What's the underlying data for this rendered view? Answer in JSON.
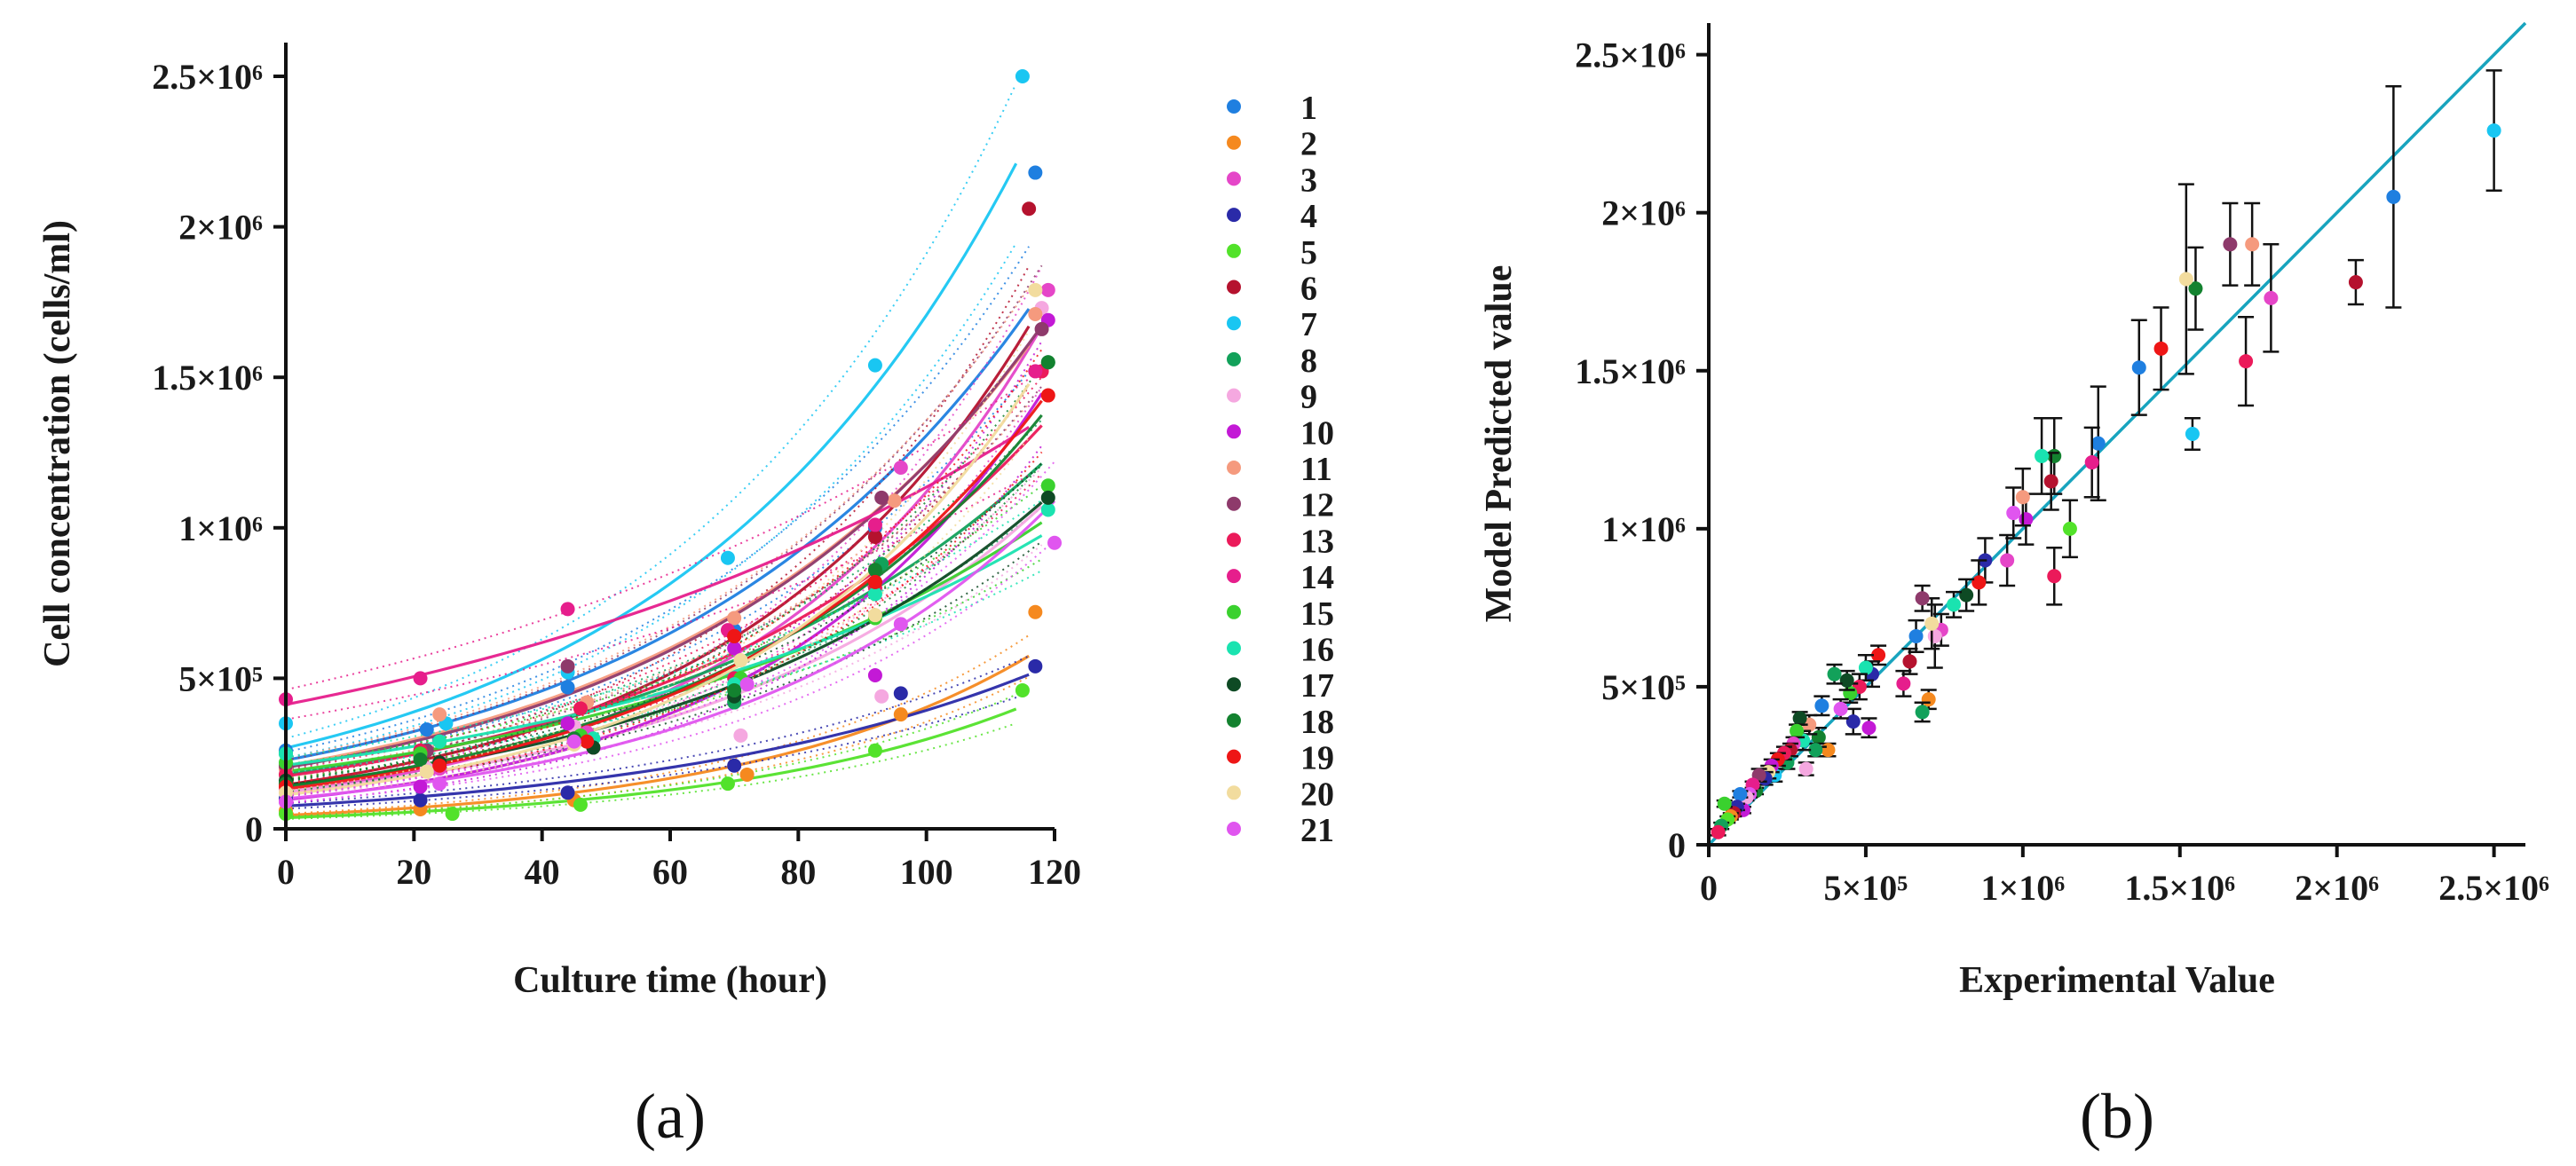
{
  "chart_data": [
    {
      "type": "scatter",
      "panel_label": "(a)",
      "title": "",
      "xlabel": "Culture time (hour)",
      "ylabel": "Cell concentration (cells/ml)",
      "xlim": [
        0,
        120
      ],
      "ylim": [
        0,
        2500000
      ],
      "x_ticks": [
        0,
        20,
        40,
        60,
        80,
        100,
        120
      ],
      "x_tick_labels": [
        "0",
        "20",
        "40",
        "60",
        "80",
        "100",
        "120"
      ],
      "y_ticks": [
        0,
        500000,
        1000000,
        1500000,
        2000000,
        2500000
      ],
      "y_tick_labels": [
        "0",
        "5×10⁵",
        "1×10⁶",
        "1.5×10⁶",
        "2×10⁶",
        "2.5×10⁶"
      ],
      "fit": "exponential growth curve per series with dotted confidence band",
      "legend_position": "right",
      "series": [
        {
          "name": "1",
          "color": "#1f7fe0",
          "x": [
            0,
            22,
            44,
            70,
            92,
            117
          ],
          "values": [
            260000,
            330000,
            470000,
            660000,
            1000000,
            2180000
          ]
        },
        {
          "name": "2",
          "color": "#f5891f",
          "x": [
            0,
            21,
            45,
            72,
            96,
            117
          ],
          "values": [
            60000,
            65000,
            95000,
            180000,
            380000,
            720000
          ]
        },
        {
          "name": "3",
          "color": "#e546c8",
          "x": [
            0,
            24,
            47,
            72,
            96,
            119
          ],
          "values": [
            140000,
            200000,
            320000,
            480000,
            1200000,
            1790000
          ]
        },
        {
          "name": "4",
          "color": "#2a2aa8",
          "x": [
            0,
            21,
            44,
            70,
            96,
            117
          ],
          "values": [
            100000,
            95000,
            120000,
            210000,
            450000,
            540000
          ]
        },
        {
          "name": "5",
          "color": "#52e22a",
          "x": [
            0,
            26,
            46,
            69,
            92,
            115
          ],
          "values": [
            50000,
            50000,
            80000,
            150000,
            260000,
            460000
          ]
        },
        {
          "name": "6",
          "color": "#b5122e",
          "x": [
            0,
            24,
            48,
            70,
            92,
            116
          ],
          "values": [
            200000,
            220000,
            270000,
            640000,
            970000,
            2060000
          ]
        },
        {
          "name": "7",
          "color": "#19c6f2",
          "x": [
            0,
            25,
            44,
            69,
            92,
            115
          ],
          "values": [
            350000,
            350000,
            520000,
            900000,
            1540000,
            2500000
          ]
        },
        {
          "name": "8",
          "color": "#12a15a",
          "x": [
            0,
            21,
            47,
            70,
            93,
            119
          ],
          "values": [
            250000,
            240000,
            290000,
            420000,
            880000,
            1550000
          ]
        },
        {
          "name": "9",
          "color": "#f5a8e0",
          "x": [
            0,
            22,
            45,
            71,
            93,
            118
          ],
          "values": [
            130000,
            200000,
            340000,
            310000,
            440000,
            1730000
          ]
        },
        {
          "name": "10",
          "color": "#c319d6",
          "x": [
            0,
            21,
            44,
            70,
            92,
            119
          ],
          "values": [
            90000,
            140000,
            350000,
            600000,
            510000,
            1690000
          ]
        },
        {
          "name": "11",
          "color": "#f59a7e",
          "x": [
            0,
            24,
            47,
            70,
            95,
            117
          ],
          "values": [
            200000,
            380000,
            420000,
            700000,
            1090000,
            1710000
          ]
        },
        {
          "name": "12",
          "color": "#8e3a6b",
          "x": [
            0,
            22,
            44,
            70,
            93,
            118
          ],
          "values": [
            210000,
            260000,
            540000,
            640000,
            1100000,
            1660000
          ]
        },
        {
          "name": "13",
          "color": "#eb1a5a",
          "x": [
            0,
            21,
            46,
            70,
            92,
            118
          ],
          "values": [
            180000,
            260000,
            400000,
            500000,
            800000,
            1520000
          ]
        },
        {
          "name": "14",
          "color": "#e61e8c",
          "x": [
            0,
            21,
            44,
            69,
            92,
            117
          ],
          "values": [
            430000,
            500000,
            730000,
            660000,
            1010000,
            1520000
          ]
        },
        {
          "name": "15",
          "color": "#3ad12e",
          "x": [
            0,
            21,
            46,
            71,
            92,
            119
          ],
          "values": [
            220000,
            250000,
            310000,
            500000,
            700000,
            1140000
          ]
        },
        {
          "name": "16",
          "color": "#1ae3b0",
          "x": [
            0,
            24,
            48,
            70,
            92,
            119
          ],
          "values": [
            250000,
            290000,
            300000,
            480000,
            780000,
            1060000
          ]
        },
        {
          "name": "17",
          "color": "#0e4a24",
          "x": [
            0,
            24,
            48,
            70,
            92,
            119
          ],
          "values": [
            160000,
            220000,
            270000,
            440000,
            820000,
            1100000
          ]
        },
        {
          "name": "18",
          "color": "#13822f",
          "x": [
            0,
            21,
            45,
            70,
            92,
            119
          ],
          "values": [
            150000,
            230000,
            300000,
            460000,
            860000,
            1550000
          ]
        },
        {
          "name": "19",
          "color": "#ee1616",
          "x": [
            0,
            24,
            47,
            70,
            92,
            119
          ],
          "values": [
            140000,
            210000,
            290000,
            640000,
            820000,
            1440000
          ]
        },
        {
          "name": "20",
          "color": "#f2dc9e",
          "x": [
            0,
            22,
            45,
            71,
            92,
            117
          ],
          "values": [
            120000,
            190000,
            280000,
            560000,
            710000,
            1790000
          ]
        },
        {
          "name": "21",
          "color": "#e055ef",
          "x": [
            0,
            24,
            45,
            72,
            96,
            120
          ],
          "values": [
            90000,
            150000,
            290000,
            480000,
            680000,
            950000
          ]
        }
      ]
    },
    {
      "type": "scatter",
      "panel_label": "(b)",
      "title": "",
      "xlabel": "Experimental Value",
      "ylabel": "Model Predicted value",
      "xlim": [
        0,
        2600000
      ],
      "ylim": [
        0,
        2600000
      ],
      "x_ticks": [
        0,
        500000,
        1000000,
        1500000,
        2000000,
        2500000
      ],
      "x_tick_labels": [
        "0",
        "5×10⁵",
        "1×10⁶",
        "1.5×10⁶",
        "2×10⁶",
        "2.5×10⁶"
      ],
      "y_ticks": [
        0,
        500000,
        1000000,
        1500000,
        2000000,
        2500000
      ],
      "y_tick_labels": [
        "0",
        "5×10⁵",
        "1×10⁶",
        "1.5×10⁶",
        "2×10⁶",
        "2.5×10⁶"
      ],
      "reference_line": {
        "label": "y = x",
        "from": [
          0,
          0
        ],
        "to": [
          2600000,
          2600000
        ],
        "color": "#18a4be"
      },
      "points": [
        {
          "x": 2500000,
          "y": 2260000,
          "err": 190000,
          "color": "#19c6f2"
        },
        {
          "x": 2180000,
          "y": 2050000,
          "err": 350000,
          "color": "#1f7fe0"
        },
        {
          "x": 2060000,
          "y": 1780000,
          "err": 70000,
          "color": "#b5122e"
        },
        {
          "x": 1790000,
          "y": 1730000,
          "err": 170000,
          "color": "#e546c8"
        },
        {
          "x": 1730000,
          "y": 1900000,
          "err": 130000,
          "color": "#f59a7e"
        },
        {
          "x": 1710000,
          "y": 1530000,
          "err": 140000,
          "color": "#eb1a5a"
        },
        {
          "x": 1660000,
          "y": 1900000,
          "err": 130000,
          "color": "#8e3a6b"
        },
        {
          "x": 1550000,
          "y": 1760000,
          "err": 130000,
          "color": "#13822f"
        },
        {
          "x": 1540000,
          "y": 1300000,
          "err": 50000,
          "color": "#19c6f2"
        },
        {
          "x": 1520000,
          "y": 1790000,
          "err": 300000,
          "color": "#f2dc9e"
        },
        {
          "x": 1440000,
          "y": 1570000,
          "err": 130000,
          "color": "#ee1616"
        },
        {
          "x": 1370000,
          "y": 1510000,
          "err": 150000,
          "color": "#1f7fe0"
        },
        {
          "x": 1240000,
          "y": 1270000,
          "err": 180000,
          "color": "#1f7fe0"
        },
        {
          "x": 1220000,
          "y": 1210000,
          "err": 110000,
          "color": "#e61e8c"
        },
        {
          "x": 1150000,
          "y": 1000000,
          "err": 90000,
          "color": "#52e22a"
        },
        {
          "x": 1100000,
          "y": 1230000,
          "err": 120000,
          "color": "#13822f"
        },
        {
          "x": 1100000,
          "y": 850000,
          "err": 90000,
          "color": "#eb1a5a"
        },
        {
          "x": 1090000,
          "y": 1150000,
          "err": 90000,
          "color": "#b5122e"
        },
        {
          "x": 1060000,
          "y": 1230000,
          "err": 120000,
          "color": "#1ae3b0"
        },
        {
          "x": 1010000,
          "y": 1030000,
          "err": 80000,
          "color": "#c319d6"
        },
        {
          "x": 1000000,
          "y": 1100000,
          "err": 90000,
          "color": "#f59a7e"
        },
        {
          "x": 970000,
          "y": 1050000,
          "err": 80000,
          "color": "#e055ef"
        },
        {
          "x": 950000,
          "y": 900000,
          "err": 80000,
          "color": "#e546c8"
        },
        {
          "x": 880000,
          "y": 900000,
          "err": 70000,
          "color": "#2a2aa8"
        },
        {
          "x": 860000,
          "y": 830000,
          "err": 70000,
          "color": "#ee1616"
        },
        {
          "x": 820000,
          "y": 790000,
          "err": 50000,
          "color": "#0e4a24"
        },
        {
          "x": 780000,
          "y": 760000,
          "err": 40000,
          "color": "#1ae3b0"
        },
        {
          "x": 740000,
          "y": 680000,
          "err": 50000,
          "color": "#e546c8"
        },
        {
          "x": 720000,
          "y": 660000,
          "err": 100000,
          "color": "#f5a8e0"
        },
        {
          "x": 710000,
          "y": 700000,
          "err": 80000,
          "color": "#f2dc9e"
        },
        {
          "x": 700000,
          "y": 460000,
          "err": 30000,
          "color": "#f5891f"
        },
        {
          "x": 680000,
          "y": 780000,
          "err": 40000,
          "color": "#8e3a6b"
        },
        {
          "x": 680000,
          "y": 420000,
          "err": 30000,
          "color": "#12a15a"
        },
        {
          "x": 660000,
          "y": 660000,
          "err": 50000,
          "color": "#1f7fe0"
        },
        {
          "x": 640000,
          "y": 580000,
          "err": 40000,
          "color": "#b5122e"
        },
        {
          "x": 620000,
          "y": 510000,
          "err": 40000,
          "color": "#e61e8c"
        },
        {
          "x": 540000,
          "y": 600000,
          "err": 30000,
          "color": "#ee1616"
        },
        {
          "x": 520000,
          "y": 540000,
          "err": 40000,
          "color": "#2a2aa8"
        },
        {
          "x": 510000,
          "y": 370000,
          "err": 30000,
          "color": "#c319d6"
        },
        {
          "x": 500000,
          "y": 560000,
          "err": 40000,
          "color": "#1ae3b0"
        },
        {
          "x": 480000,
          "y": 500000,
          "err": 40000,
          "color": "#eb1a5a"
        },
        {
          "x": 460000,
          "y": 390000,
          "err": 40000,
          "color": "#2a2aa8"
        },
        {
          "x": 450000,
          "y": 480000,
          "err": 30000,
          "color": "#3ad12e"
        },
        {
          "x": 440000,
          "y": 520000,
          "err": 30000,
          "color": "#0e4a24"
        },
        {
          "x": 420000,
          "y": 430000,
          "err": 30000,
          "color": "#e055ef"
        },
        {
          "x": 400000,
          "y": 540000,
          "err": 30000,
          "color": "#12a15a"
        },
        {
          "x": 380000,
          "y": 300000,
          "err": 20000,
          "color": "#f5891f"
        },
        {
          "x": 360000,
          "y": 440000,
          "err": 30000,
          "color": "#1f7fe0"
        },
        {
          "x": 350000,
          "y": 340000,
          "err": 30000,
          "color": "#13822f"
        },
        {
          "x": 340000,
          "y": 300000,
          "err": 20000,
          "color": "#12a15a"
        },
        {
          "x": 320000,
          "y": 380000,
          "err": 30000,
          "color": "#f59a7e"
        },
        {
          "x": 310000,
          "y": 240000,
          "err": 20000,
          "color": "#f5a8e0"
        },
        {
          "x": 300000,
          "y": 330000,
          "err": 30000,
          "color": "#1ae3b0"
        },
        {
          "x": 290000,
          "y": 400000,
          "err": 20000,
          "color": "#0e4a24"
        },
        {
          "x": 280000,
          "y": 360000,
          "err": 20000,
          "color": "#3ad12e"
        },
        {
          "x": 270000,
          "y": 320000,
          "err": 20000,
          "color": "#e546c8"
        },
        {
          "x": 260000,
          "y": 300000,
          "err": 20000,
          "color": "#b5122e"
        },
        {
          "x": 250000,
          "y": 260000,
          "err": 20000,
          "color": "#12a15a"
        },
        {
          "x": 240000,
          "y": 290000,
          "err": 20000,
          "color": "#eb1a5a"
        },
        {
          "x": 220000,
          "y": 270000,
          "err": 20000,
          "color": "#ee1616"
        },
        {
          "x": 210000,
          "y": 220000,
          "err": 20000,
          "color": "#19c6f2"
        },
        {
          "x": 200000,
          "y": 250000,
          "err": 20000,
          "color": "#c319d6"
        },
        {
          "x": 190000,
          "y": 230000,
          "err": 20000,
          "color": "#f2dc9e"
        },
        {
          "x": 180000,
          "y": 210000,
          "err": 20000,
          "color": "#2a2aa8"
        },
        {
          "x": 160000,
          "y": 220000,
          "err": 20000,
          "color": "#8e3a6b"
        },
        {
          "x": 150000,
          "y": 170000,
          "err": 10000,
          "color": "#13822f"
        },
        {
          "x": 140000,
          "y": 190000,
          "err": 10000,
          "color": "#e61e8c"
        },
        {
          "x": 130000,
          "y": 160000,
          "err": 10000,
          "color": "#e055ef"
        },
        {
          "x": 120000,
          "y": 150000,
          "err": 10000,
          "color": "#f5a8e0"
        },
        {
          "x": 110000,
          "y": 110000,
          "err": 10000,
          "color": "#c319d6"
        },
        {
          "x": 100000,
          "y": 160000,
          "err": 10000,
          "color": "#1f7fe0"
        },
        {
          "x": 90000,
          "y": 120000,
          "err": 10000,
          "color": "#2a2aa8"
        },
        {
          "x": 80000,
          "y": 100000,
          "err": 10000,
          "color": "#b5122e"
        },
        {
          "x": 70000,
          "y": 90000,
          "err": 10000,
          "color": "#f5891f"
        },
        {
          "x": 60000,
          "y": 80000,
          "err": 10000,
          "color": "#52e22a"
        },
        {
          "x": 50000,
          "y": 130000,
          "err": 10000,
          "color": "#3ad12e"
        },
        {
          "x": 40000,
          "y": 60000,
          "err": 10000,
          "color": "#12a15a"
        },
        {
          "x": 30000,
          "y": 40000,
          "err": 10000,
          "color": "#eb1a5a"
        }
      ]
    }
  ]
}
